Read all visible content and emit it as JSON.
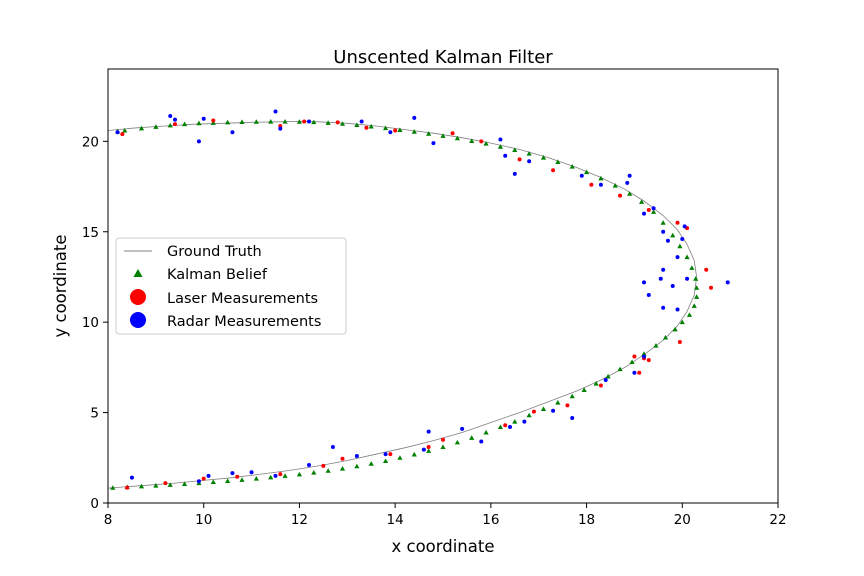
{
  "chart_data": {
    "type": "scatter",
    "title": "Unscented Kalman Filter",
    "xlabel": "x coordinate",
    "ylabel": "y coordinate",
    "xlim": [
      8,
      22
    ],
    "ylim": [
      0,
      24
    ],
    "xticks": [
      8,
      10,
      12,
      14,
      16,
      18,
      20,
      22
    ],
    "yticks": [
      0,
      5,
      10,
      15,
      20
    ],
    "grid": false,
    "legend_position": "center-left",
    "series": [
      {
        "name": "Ground Truth",
        "kind": "line",
        "color": "#808080",
        "x": [
          8.0,
          8.6,
          9.2,
          9.8,
          10.4,
          11.0,
          11.6,
          12.0,
          12.4,
          13.0,
          13.6,
          14.2,
          14.8,
          15.4,
          16.0,
          16.6,
          17.2,
          17.8,
          18.3,
          18.8,
          19.2,
          19.6,
          19.9,
          20.1,
          20.25,
          20.3,
          20.25,
          20.1,
          19.9,
          19.6,
          19.2,
          18.8,
          18.3,
          17.8,
          17.2,
          16.6,
          16.0,
          15.4,
          14.8,
          14.2,
          13.6,
          13.0,
          12.4,
          11.8,
          11.2,
          10.6,
          10.0,
          9.4,
          8.8,
          8.2,
          8.0
        ],
        "y": [
          20.6,
          20.75,
          20.85,
          20.95,
          21.0,
          21.05,
          21.08,
          21.1,
          21.08,
          21.0,
          20.85,
          20.65,
          20.45,
          20.2,
          19.9,
          19.55,
          19.1,
          18.55,
          18.0,
          17.35,
          16.7,
          15.9,
          15.1,
          14.3,
          13.4,
          12.5,
          11.5,
          10.6,
          9.8,
          9.0,
          8.2,
          7.5,
          6.8,
          6.2,
          5.6,
          5.0,
          4.45,
          3.9,
          3.45,
          3.05,
          2.7,
          2.35,
          2.05,
          1.8,
          1.6,
          1.4,
          1.25,
          1.1,
          0.98,
          0.86,
          0.82
        ]
      },
      {
        "name": "Kalman Belief",
        "kind": "triangle",
        "color": "#008000",
        "x": [
          8.2,
          8.35,
          8.7,
          9.0,
          9.3,
          9.6,
          9.9,
          10.2,
          10.5,
          10.8,
          11.1,
          11.4,
          11.7,
          12.0,
          12.3,
          12.6,
          12.9,
          13.2,
          13.5,
          13.8,
          14.1,
          14.4,
          14.7,
          15.0,
          15.3,
          15.6,
          15.9,
          16.2,
          16.5,
          16.8,
          17.1,
          17.4,
          17.7,
          18.0,
          18.3,
          18.6,
          18.9,
          19.15,
          19.4,
          19.6,
          19.8,
          19.95,
          20.1,
          20.2,
          20.28,
          20.3,
          20.3,
          20.25,
          20.15,
          20.0,
          19.85,
          19.65,
          19.45,
          19.2,
          18.95,
          18.7,
          18.45,
          18.2,
          17.95,
          17.7,
          17.4,
          17.1,
          16.8,
          16.5,
          16.2,
          15.9,
          15.6,
          15.3,
          15.0,
          14.7,
          14.4,
          14.1,
          13.8,
          13.5,
          13.2,
          12.9,
          12.6,
          12.3,
          12.0,
          11.7,
          11.4,
          11.1,
          10.8,
          10.5,
          10.2,
          9.9,
          9.6,
          9.3,
          9.0,
          8.7,
          8.4,
          8.1
        ],
        "y": [
          20.55,
          20.6,
          20.72,
          20.8,
          20.88,
          20.95,
          21.0,
          21.02,
          21.05,
          21.07,
          21.08,
          21.09,
          21.09,
          21.08,
          21.06,
          21.02,
          20.97,
          20.9,
          20.82,
          20.73,
          20.63,
          20.53,
          20.42,
          20.3,
          20.17,
          20.02,
          19.87,
          19.7,
          19.52,
          19.32,
          19.1,
          18.86,
          18.6,
          18.3,
          17.95,
          17.55,
          17.1,
          16.65,
          16.1,
          15.5,
          14.8,
          14.2,
          13.6,
          13.0,
          12.4,
          11.9,
          11.4,
          10.9,
          10.4,
          10.0,
          9.6,
          9.15,
          8.7,
          8.25,
          7.8,
          7.4,
          7.0,
          6.6,
          6.25,
          5.9,
          5.55,
          5.2,
          4.85,
          4.5,
          4.2,
          3.9,
          3.6,
          3.35,
          3.1,
          2.88,
          2.68,
          2.5,
          2.32,
          2.17,
          2.03,
          1.9,
          1.78,
          1.68,
          1.58,
          1.5,
          1.42,
          1.35,
          1.28,
          1.22,
          1.16,
          1.1,
          1.05,
          1.0,
          0.96,
          0.92,
          0.88,
          0.84
        ]
      },
      {
        "name": "Laser Measurements",
        "kind": "dot",
        "color": "#ff0000",
        "x": [
          8.3,
          9.4,
          10.2,
          11.6,
          12.1,
          12.8,
          13.4,
          14.0,
          15.2,
          15.8,
          16.6,
          17.3,
          18.1,
          18.7,
          19.3,
          19.9,
          20.1,
          20.5,
          20.6,
          19.95,
          19.3,
          19.0,
          18.3,
          17.6,
          16.9,
          16.3,
          15.0,
          14.7,
          13.9,
          12.9,
          12.5,
          11.6,
          10.7,
          10.0,
          9.2,
          8.4,
          19.1,
          19.2
        ],
        "y": [
          20.4,
          20.95,
          21.15,
          20.85,
          21.1,
          21.05,
          20.75,
          20.6,
          20.45,
          20.0,
          19.0,
          18.4,
          17.6,
          17.0,
          16.2,
          15.5,
          15.2,
          12.9,
          11.9,
          8.9,
          7.9,
          8.1,
          6.5,
          5.4,
          5.05,
          4.3,
          3.5,
          3.1,
          2.7,
          2.45,
          2.05,
          1.6,
          1.45,
          1.35,
          1.1,
          0.85,
          7.2,
          8.0
        ]
      },
      {
        "name": "Radar Measurements",
        "kind": "dot",
        "color": "#0000ff",
        "x": [
          8.2,
          9.3,
          9.4,
          9.9,
          10.0,
          10.6,
          11.5,
          11.6,
          12.2,
          13.3,
          13.9,
          14.4,
          14.8,
          16.2,
          16.3,
          16.5,
          16.8,
          17.9,
          18.3,
          18.9,
          18.85,
          19.2,
          19.4,
          19.6,
          20.05,
          20.0,
          19.9,
          19.7,
          19.6,
          19.8,
          20.1,
          19.2,
          19.3,
          19.55,
          19.6,
          19.9,
          20.95,
          19.2,
          19.0,
          18.4,
          17.3,
          17.7,
          16.4,
          16.7,
          15.8,
          15.4,
          14.7,
          14.6,
          13.8,
          13.2,
          12.7,
          12.2,
          11.5,
          11.0,
          10.6,
          10.1,
          9.9,
          8.5
        ],
        "y": [
          20.5,
          21.4,
          21.2,
          20.0,
          21.25,
          20.5,
          21.65,
          20.7,
          21.1,
          21.1,
          20.5,
          21.3,
          19.9,
          20.1,
          19.2,
          18.2,
          18.9,
          18.1,
          17.6,
          18.1,
          17.7,
          16.0,
          16.3,
          15.0,
          15.3,
          14.6,
          13.6,
          14.5,
          12.9,
          12.0,
          12.4,
          12.2,
          11.5,
          12.4,
          10.8,
          10.7,
          12.2,
          8.1,
          7.2,
          6.8,
          5.1,
          4.7,
          4.2,
          4.5,
          3.4,
          4.1,
          3.95,
          2.95,
          2.7,
          2.6,
          3.1,
          2.1,
          1.5,
          1.7,
          1.65,
          1.5,
          1.2,
          1.4
        ]
      }
    ]
  }
}
